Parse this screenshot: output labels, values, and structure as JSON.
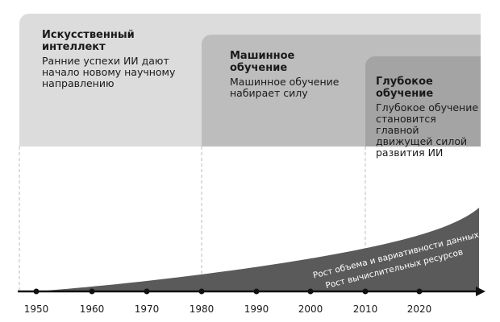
{
  "eras": [
    {
      "title": "Искусственный интеллект",
      "description": [
        "Ранние успехи ИИ дают",
        "начало новому научному",
        "направлению"
      ]
    },
    {
      "title": "Машинное обучение",
      "description": [
        "Машинное обучение",
        "набирает силу"
      ]
    },
    {
      "title": "Глубокое обучение",
      "description": [
        "Глубокое обучение",
        "становится главной",
        "движущей силой",
        "развития ИИ"
      ]
    }
  ],
  "growth": {
    "labels": [
      "Рост объема и вариативности данных",
      "Рост вычислительных ресурсов"
    ]
  },
  "timeline": {
    "years": [
      "1950",
      "1960",
      "1970",
      "1980",
      "1990",
      "2000",
      "2010",
      "2020"
    ]
  },
  "colors": {
    "ai_panel": "#dcdcdc",
    "ml_panel": "#bdbdbd",
    "dl_panel": "#a4a4a4",
    "growth_area": "#5a5a5a",
    "axis": "#111111"
  }
}
